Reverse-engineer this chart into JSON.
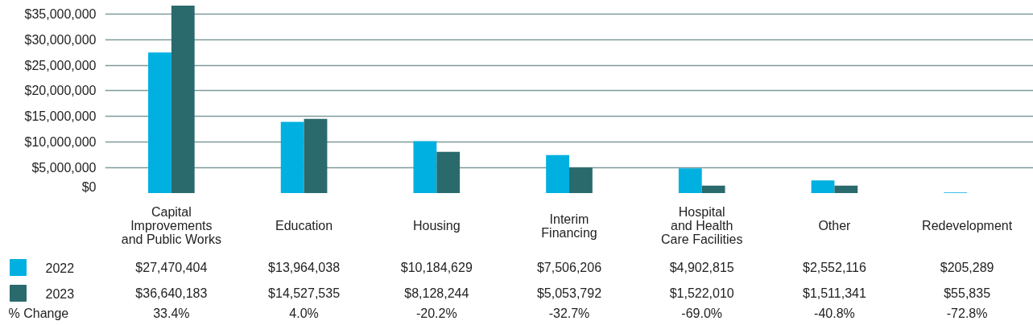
{
  "chart_data": {
    "type": "bar",
    "categories": [
      "Capital\nImprovements\nand Public Works",
      "Education",
      "Housing",
      "Interim\nFinancing",
      "Hospital\nand Health\nCare Facilities",
      "Other",
      "Redevelopment"
    ],
    "series": [
      {
        "name": "2022",
        "color": "#00b0e0",
        "values": [
          27470404,
          13964038,
          10184629,
          7506206,
          4902815,
          2552116,
          205289
        ],
        "value_labels": [
          "$27,470,404",
          "$13,964,038",
          "$10,184,629",
          "$7,506,206",
          "$4,902,815",
          "$2,552,116",
          "$205,289"
        ]
      },
      {
        "name": "2023",
        "color": "#2a6a6c",
        "values": [
          36640183,
          14527535,
          8128244,
          5053792,
          1522010,
          1511341,
          55835
        ],
        "value_labels": [
          "$36,640,183",
          "$14,527,535",
          "$8,128,244",
          "$5,053,792",
          "$1,522,010",
          "$1,511,341",
          "$55,835"
        ]
      }
    ],
    "annotations": [
      "% Change",
      "33.4%",
      "4.0%",
      "-20.2%",
      "-32.7%",
      "-69.0%",
      "-40.8%",
      "-72.8%"
    ],
    "ylim": [
      0,
      36700000
    ],
    "yticks": [
      {
        "value": 0,
        "label": "$0"
      },
      {
        "value": 5000000,
        "label": "$5,000,000"
      },
      {
        "value": 10000000,
        "label": "$10,000,000"
      },
      {
        "value": 15000000,
        "label": "$15,000,000"
      },
      {
        "value": 20000000,
        "label": "$20,000,000"
      },
      {
        "value": 25000000,
        "label": "$25,000,000"
      },
      {
        "value": 30000000,
        "label": "$30,000,000"
      },
      {
        "value": 35000000,
        "label": "$35,000,000"
      }
    ],
    "grid": "y",
    "legend": "bottom left"
  }
}
